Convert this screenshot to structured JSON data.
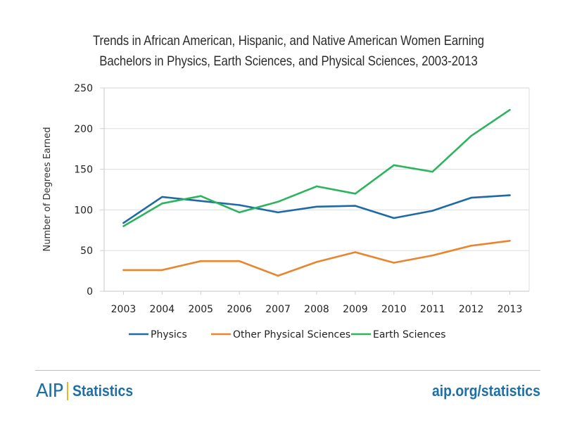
{
  "chart_data": {
    "type": "line",
    "title": "Trends in African American, Hispanic, and Native American Women Earning Bachelors in Physics, Earth Sciences, and Physical Sciences, 2003-2013",
    "title_lines": [
      "Trends in African American, Hispanic, and Native American Women Earning",
      "Bachelors in Physics, Earth Sciences, and Physical Sciences, 2003-2013"
    ],
    "xlabel": "",
    "ylabel": "Number of Degrees Earned",
    "categories": [
      "2003",
      "2004",
      "2005",
      "2006",
      "2007",
      "2008",
      "2009",
      "2010",
      "2011",
      "2012",
      "2013"
    ],
    "ylim": [
      0,
      250
    ],
    "yticks": [
      0,
      50,
      100,
      150,
      200,
      250
    ],
    "grid": true,
    "legend_position": "bottom",
    "series": [
      {
        "name": "Physics",
        "color": "#1f6aa5",
        "values": [
          84,
          116,
          111,
          106,
          97,
          104,
          105,
          90,
          99,
          115,
          118
        ]
      },
      {
        "name": "Other Physical Sciences",
        "color": "#e8852d",
        "values": [
          26,
          26,
          37,
          37,
          19,
          36,
          48,
          35,
          44,
          56,
          62
        ]
      },
      {
        "name": "Earth Sciences",
        "color": "#2cb45c",
        "values": [
          80,
          108,
          117,
          97,
          110,
          129,
          120,
          155,
          147,
          191,
          223
        ]
      }
    ]
  },
  "footer": {
    "logo_mark": "AIP",
    "logo_text": "Statistics",
    "website": "aip.org/statistics",
    "brand_color": "#1e6fa6",
    "accent_color": "#f0b323"
  }
}
